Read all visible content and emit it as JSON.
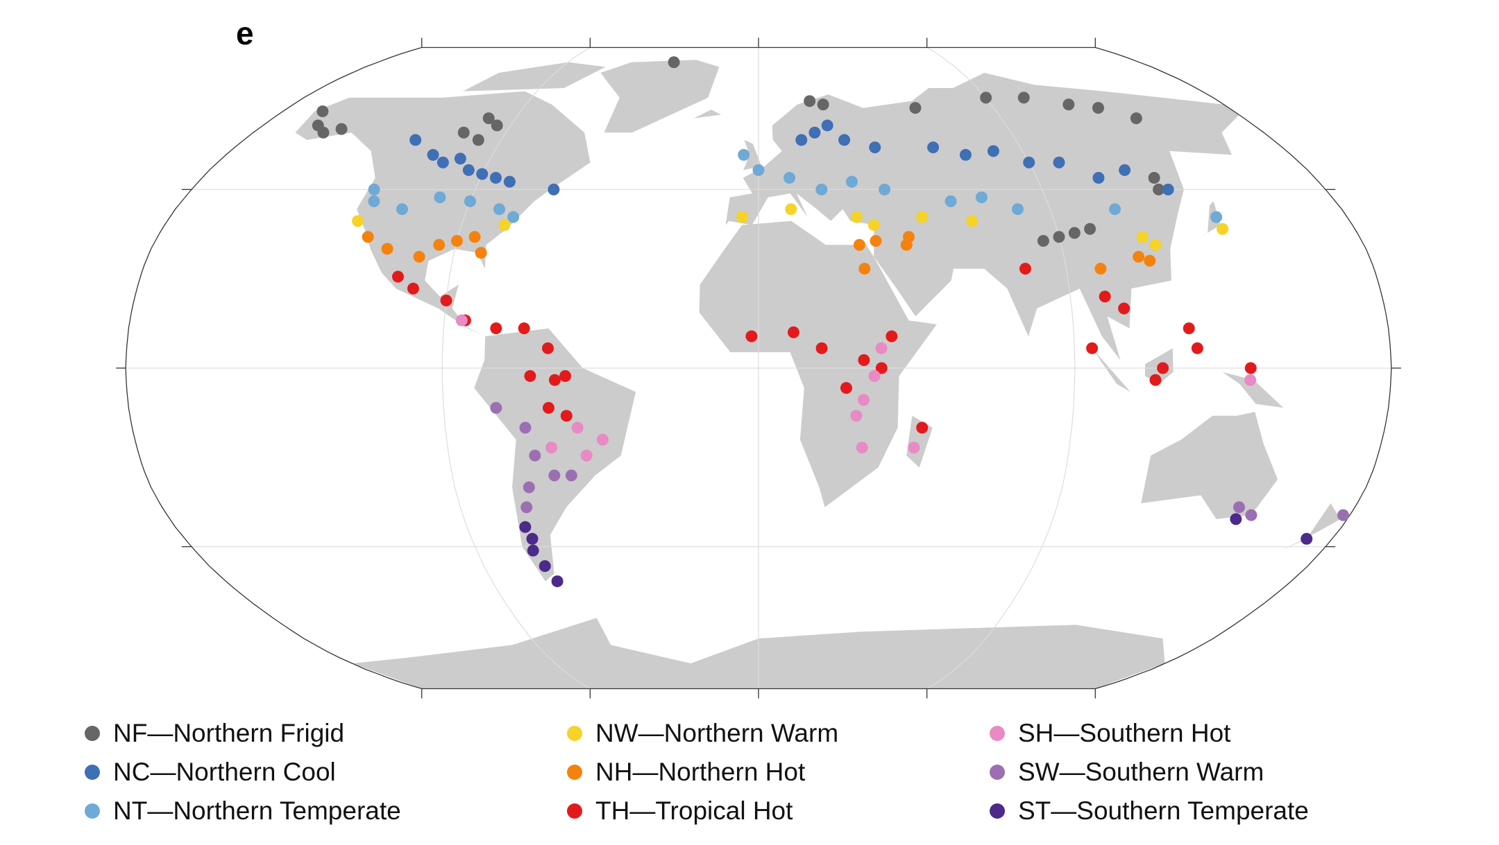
{
  "chart_data": {
    "type": "scatter",
    "title": "e",
    "series": [
      {
        "name": "NF—Northern Frigid",
        "color": "#666666",
        "x": [
          -160,
          -155,
          -150,
          -165,
          -100,
          -95,
          -105,
          -98,
          -40,
          60,
          90,
          120,
          130,
          105,
          140,
          90,
          95,
          100,
          85,
          20,
          25,
          128,
          127
        ],
        "values": [
          62,
          60,
          61,
          66,
          64,
          62,
          60,
          58,
          82,
          67,
          70,
          68,
          67,
          70,
          64,
          33,
          34,
          35,
          32,
          69,
          68,
          48,
          45
        ]
      },
      {
        "name": "NC—Northern Cool",
        "color": "#3f6fb5",
        "x": [
          -100,
          -95,
          -90,
          -105,
          -85,
          -110,
          -120,
          -80,
          20,
          25,
          15,
          30,
          40,
          60,
          80,
          100,
          120,
          130,
          70,
          -65,
          90,
          110
        ],
        "values": [
          53,
          50,
          49,
          52,
          48,
          54,
          58,
          47,
          60,
          62,
          58,
          58,
          56,
          56,
          55,
          52,
          50,
          45,
          54,
          45,
          52,
          48
        ]
      },
      {
        "name": "NT—Northern Temperate",
        "color": "#6fa9d6",
        "x": [
          -120,
          -110,
          -100,
          -90,
          -80,
          -75,
          -122,
          0,
          10,
          20,
          30,
          -5,
          40,
          60,
          70,
          80,
          110,
          140
        ],
        "values": [
          42,
          40,
          43,
          42,
          40,
          38,
          45,
          50,
          48,
          45,
          47,
          54,
          45,
          42,
          43,
          40,
          40,
          38
        ]
      },
      {
        "name": "NW—Northern Warm",
        "color": "#f5d327",
        "x": [
          -122,
          -5,
          10,
          30,
          35,
          50,
          65,
          115,
          118,
          140,
          -77
        ],
        "values": [
          37,
          38,
          40,
          38,
          36,
          38,
          37,
          33,
          31,
          35,
          36
        ]
      },
      {
        "name": "NH—Northern Hot",
        "color": "#f5820d",
        "x": [
          -117,
          -110,
          -95,
          -90,
          -85,
          -100,
          -82,
          30,
          35,
          45,
          44,
          31,
          112,
          100,
          115
        ],
        "values": [
          33,
          30,
          31,
          32,
          33,
          28,
          29,
          31,
          32,
          33,
          31,
          25,
          28,
          25,
          27
        ]
      },
      {
        "name": "TH—Tropical Hot",
        "color": "#e31a1c",
        "x": [
          -105,
          -100,
          -90,
          -84,
          -75,
          -67,
          -60,
          -65,
          -58,
          -55,
          -60,
          -55,
          -2,
          10,
          18,
          30,
          25,
          38,
          35,
          47,
          78,
          100,
          105,
          123,
          125,
          95,
          115,
          113,
          140
        ],
        "values": [
          23,
          20,
          17,
          12,
          10,
          10,
          5,
          -2,
          -3,
          -2,
          -10,
          -12,
          8,
          9,
          5,
          2,
          -5,
          8,
          0,
          -15,
          25,
          18,
          15,
          10,
          5,
          5,
          0,
          -3,
          0
        ]
      },
      {
        "name": "SH—Southern Hot",
        "color": "#e88ac4",
        "x": [
          -52,
          -45,
          -60,
          -50,
          35,
          33,
          30,
          28,
          30,
          45,
          -85,
          140
        ],
        "values": [
          -15,
          -18,
          -20,
          -22,
          5,
          -2,
          -8,
          -12,
          -20,
          -20,
          12,
          -3
        ]
      },
      {
        "name": "SW—Southern Warm",
        "color": "#9c6fb2",
        "x": [
          -75,
          -67,
          -65,
          -60,
          -70,
          -68,
          145,
          150,
          178,
          -55
        ],
        "values": [
          -10,
          -15,
          -22,
          -27,
          -35,
          -30,
          -35,
          -37,
          -37,
          -27
        ]
      },
      {
        "name": "ST—Southern Temperate",
        "color": "#4b2a8a",
        "x": [
          -72,
          -71,
          -72,
          -70,
          -68,
          146,
          172
        ],
        "values": [
          -40,
          -43,
          -46,
          -50,
          -54,
          -38,
          -43
        ]
      }
    ]
  }
}
